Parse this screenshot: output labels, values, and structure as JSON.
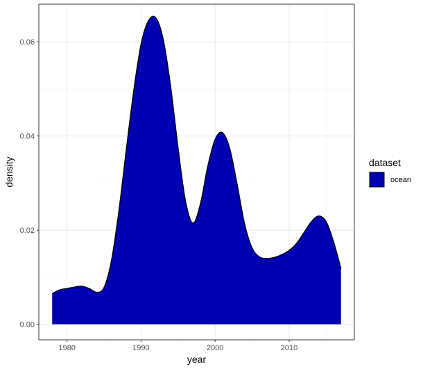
{
  "chart_data": {
    "type": "area",
    "title": "",
    "xlabel": "year",
    "ylabel": "density",
    "xlim": [
      1976.2,
      2018.8
    ],
    "ylim": [
      -0.0033,
      0.068
    ],
    "x_ticks": [
      1980,
      1990,
      2000,
      2010
    ],
    "x_tick_labels": [
      "1980",
      "1990",
      "2000",
      "2010"
    ],
    "y_ticks": [
      0.0,
      0.02,
      0.04,
      0.06
    ],
    "y_tick_labels": [
      "0.00",
      "0.02",
      "0.04",
      "0.06"
    ],
    "grid": true,
    "legend": {
      "title": "dataset",
      "position": "right",
      "entries": [
        "ocean"
      ]
    },
    "colors": {
      "fill": "#0000B3",
      "outline": "#000000",
      "panel_border": "#333333",
      "grid_major": "#ebebeb",
      "grid_minor": "#f5f5f5"
    },
    "series": [
      {
        "name": "ocean",
        "x": [
          1978,
          1979,
          1980,
          1981,
          1982,
          1983,
          1984,
          1985,
          1986,
          1987,
          1988,
          1989,
          1990,
          1991,
          1992,
          1993,
          1994,
          1995,
          1996,
          1997,
          1998,
          1999,
          2000,
          2001,
          2002,
          2003,
          2004,
          2005,
          2006,
          2007,
          2008,
          2009,
          2010,
          2011,
          2012,
          2013,
          2014,
          2015,
          2016,
          2017
        ],
        "y": [
          0.0065,
          0.0073,
          0.0076,
          0.0079,
          0.0081,
          0.0076,
          0.0068,
          0.0078,
          0.0135,
          0.024,
          0.037,
          0.0495,
          0.0595,
          0.0645,
          0.0651,
          0.0605,
          0.0505,
          0.0375,
          0.0262,
          0.0215,
          0.0255,
          0.0335,
          0.0393,
          0.0407,
          0.0372,
          0.0295,
          0.0212,
          0.0162,
          0.0143,
          0.014,
          0.0142,
          0.0148,
          0.0157,
          0.0172,
          0.0195,
          0.0218,
          0.023,
          0.0218,
          0.0175,
          0.0118
        ]
      }
    ]
  }
}
